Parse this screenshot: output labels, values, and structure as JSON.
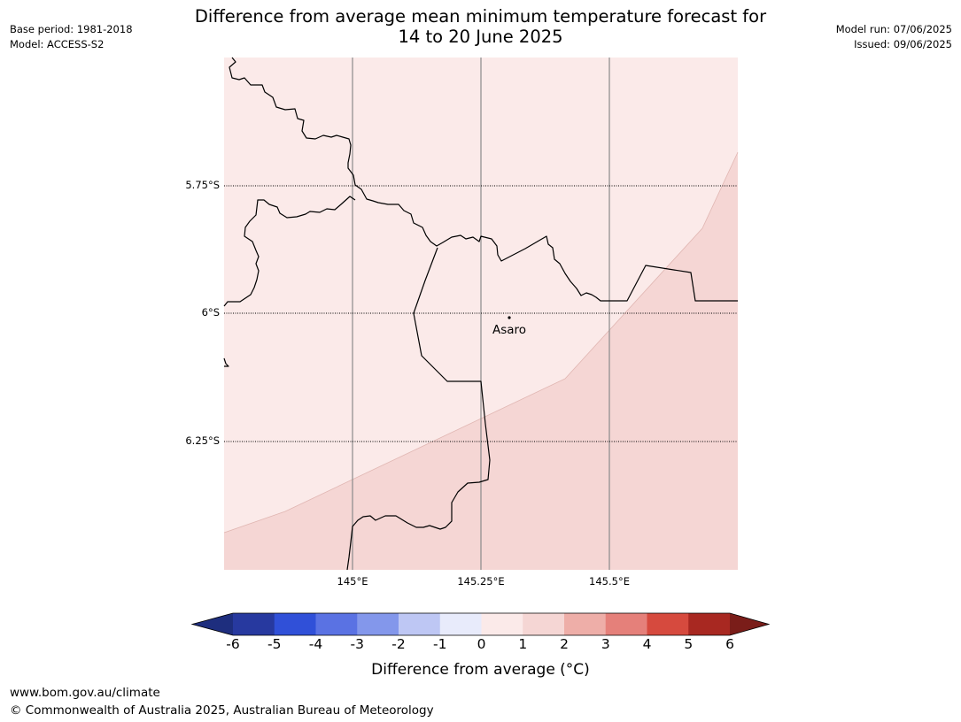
{
  "title": {
    "line1": "Difference from average mean minimum temperature forecast for",
    "line2": "14 to 20 June 2025"
  },
  "meta_left": {
    "base_period": "Base period: 1981-2018",
    "model": "Model: ACCESS-S2"
  },
  "meta_right": {
    "model_run": "Model run: 07/06/2025",
    "issued": "Issued: 09/06/2025"
  },
  "map": {
    "lat_labels": [
      "5.75°S",
      "6°S",
      "6.25°S"
    ],
    "lon_labels": [
      "145°E",
      "145.25°E",
      "145.5°E"
    ],
    "places": [
      {
        "name": "Asaro"
      }
    ],
    "shading": [
      {
        "category": "0 to 1",
        "color": "#fbeae9"
      },
      {
        "category": "1 to 2",
        "color": "#f5d6d4"
      }
    ]
  },
  "colorbar": {
    "ticks": [
      "-6",
      "-5",
      "-4",
      "-3",
      "-2",
      "-1",
      "0",
      "1",
      "2",
      "3",
      "4",
      "5",
      "6"
    ],
    "colors": [
      "#27399f",
      "#3050d8",
      "#5a72e3",
      "#8397eb",
      "#bec7f4",
      "#e8ebfb",
      "#fbeae9",
      "#f5d6d4",
      "#eeaea8",
      "#e5807a",
      "#d64a3e",
      "#a82821"
    ],
    "under_color": "#1e2e7e",
    "over_color": "#7a1d19",
    "label": "Difference from average (°C)"
  },
  "footer": {
    "url": "www.bom.gov.au/climate",
    "copyright": "© Commonwealth of Australia 2025, Australian Bureau of Meteorology"
  }
}
